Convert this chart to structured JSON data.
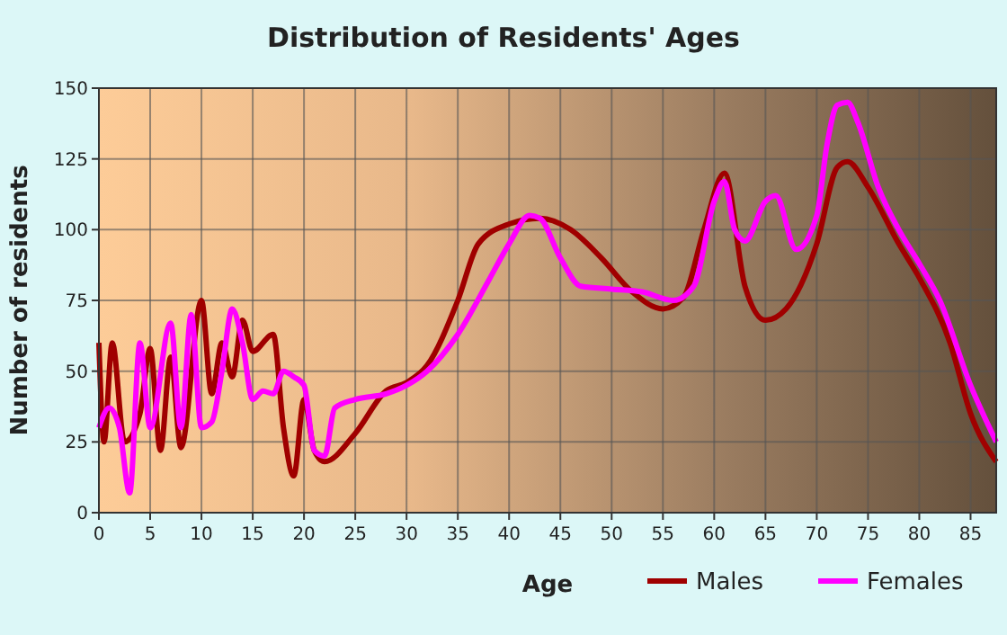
{
  "chart_data": {
    "type": "line",
    "title": "Distribution of Residents' Ages",
    "xlabel": "Age",
    "ylabel": "Number of residents",
    "xlim": [
      0,
      87.5
    ],
    "xticks": [
      0,
      5,
      10,
      15,
      20,
      25,
      30,
      35,
      40,
      45,
      50,
      55,
      60,
      65,
      70,
      75,
      80,
      85
    ],
    "ylim": [
      0,
      150
    ],
    "yticks": [
      0,
      25,
      50,
      75,
      100,
      125,
      150
    ],
    "grid": true,
    "legend": "bottom right",
    "marker": "none",
    "line_style": "solid",
    "series": [
      {
        "name": "Males",
        "color": "#a00000",
        "x": [
          0,
          0.5,
          1.3,
          2.5,
          4,
          5,
          6,
          7,
          8,
          10,
          11,
          12,
          13,
          14,
          15,
          17,
          18,
          19,
          20,
          21,
          22,
          25,
          28,
          30,
          32,
          35,
          37,
          40,
          43,
          46,
          49,
          52,
          55,
          57,
          59,
          61,
          63,
          65,
          67,
          70,
          72,
          73,
          75,
          78,
          80,
          83,
          85,
          87.5
        ],
        "values": [
          60,
          25,
          60,
          25,
          35,
          58,
          22,
          55,
          23,
          75,
          42,
          60,
          48,
          68,
          57,
          63,
          30,
          13,
          40,
          22,
          18,
          28,
          43,
          46,
          52,
          75,
          95,
          102,
          104,
          100,
          90,
          78,
          72,
          76,
          100,
          120,
          80,
          68,
          72,
          95,
          122,
          124,
          115,
          95,
          83,
          60,
          35,
          18
        ]
      },
      {
        "name": "Females",
        "color": "#ff00ff",
        "x": [
          0,
          1,
          2,
          3,
          4,
          5,
          7,
          8,
          9,
          10,
          11,
          12,
          13,
          14,
          15,
          16,
          17,
          18,
          19,
          20,
          21,
          22,
          23,
          25,
          28,
          30,
          32,
          35,
          38,
          40,
          42,
          43,
          45,
          47,
          50,
          53,
          56,
          58,
          60,
          61,
          62,
          63,
          65,
          66,
          68,
          70,
          71,
          72,
          73,
          74,
          76,
          78,
          80,
          82,
          85,
          87.5
        ],
        "values": [
          30,
          37,
          30,
          7,
          60,
          30,
          67,
          30,
          70,
          30,
          32,
          50,
          72,
          60,
          40,
          43,
          42,
          50,
          48,
          45,
          22,
          20,
          37,
          40,
          42,
          45,
          50,
          63,
          82,
          95,
          105,
          104,
          90,
          80,
          79,
          78,
          75,
          80,
          110,
          117,
          100,
          96,
          110,
          112,
          93,
          105,
          130,
          144,
          145,
          138,
          115,
          100,
          88,
          75,
          45,
          25
        ]
      }
    ]
  }
}
